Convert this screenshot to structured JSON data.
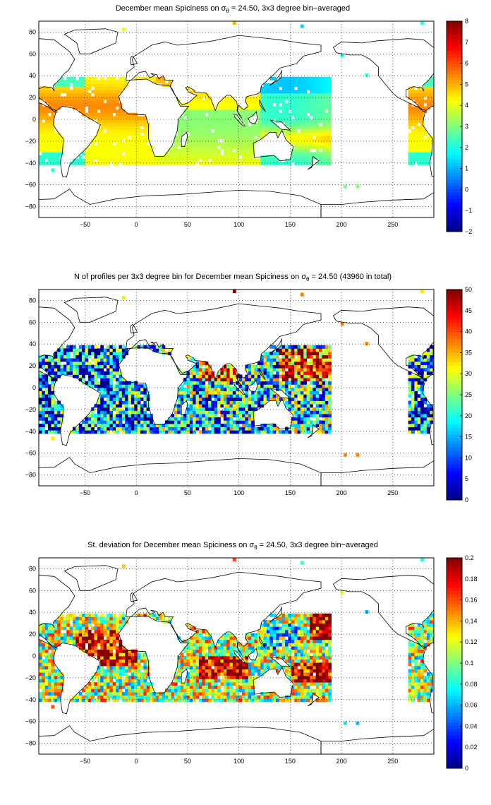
{
  "chart_data": [
    {
      "type": "heatmap",
      "title_prefix": "December mean Spiciness on σ",
      "title_sub": "θ",
      "title_suffix": " = 24.50, 3x3 degree bin−averaged",
      "x_ticks": [
        -50,
        0,
        50,
        100,
        150,
        200,
        250
      ],
      "y_ticks": [
        80,
        60,
        40,
        20,
        0,
        -20,
        -40,
        -60,
        -80
      ],
      "xlim": [
        -95,
        290
      ],
      "ylim": [
        -90,
        90
      ],
      "colorbar": {
        "min": -2,
        "max": 8,
        "ticks": [
          8,
          7,
          6,
          5,
          4,
          3,
          2,
          1,
          0,
          -1,
          -2
        ]
      }
    },
    {
      "type": "heatmap",
      "title_prefix": "N of profiles per 3x3 degree bin for December mean Spiciness on σ",
      "title_sub": "θ",
      "title_suffix": " = 24.50 (43960 in total)",
      "x_ticks": [
        -50,
        0,
        50,
        100,
        150,
        200,
        250
      ],
      "y_ticks": [
        80,
        60,
        40,
        20,
        0,
        -20,
        -40,
        -60,
        -80
      ],
      "xlim": [
        -95,
        290
      ],
      "ylim": [
        -90,
        90
      ],
      "colorbar": {
        "min": 0,
        "max": 50,
        "ticks": [
          50,
          45,
          40,
          35,
          30,
          25,
          20,
          15,
          10,
          5,
          0
        ]
      }
    },
    {
      "type": "heatmap",
      "title_prefix": "St. deviation for December mean Spiciness on σ",
      "title_sub": "θ",
      "title_suffix": " = 24.50, 3x3 degree bin−averaged",
      "x_ticks": [
        -50,
        0,
        50,
        100,
        150,
        200,
        250
      ],
      "y_ticks": [
        80,
        60,
        40,
        20,
        0,
        -20,
        -40,
        -60,
        -80
      ],
      "xlim": [
        -95,
        290
      ],
      "ylim": [
        -90,
        90
      ],
      "colorbar": {
        "min": 0,
        "max": 0.2,
        "ticks": [
          0.2,
          0.18,
          0.16,
          0.14,
          0.12,
          0.1,
          0.08,
          0.06,
          0.04,
          0.02,
          0
        ]
      }
    }
  ]
}
